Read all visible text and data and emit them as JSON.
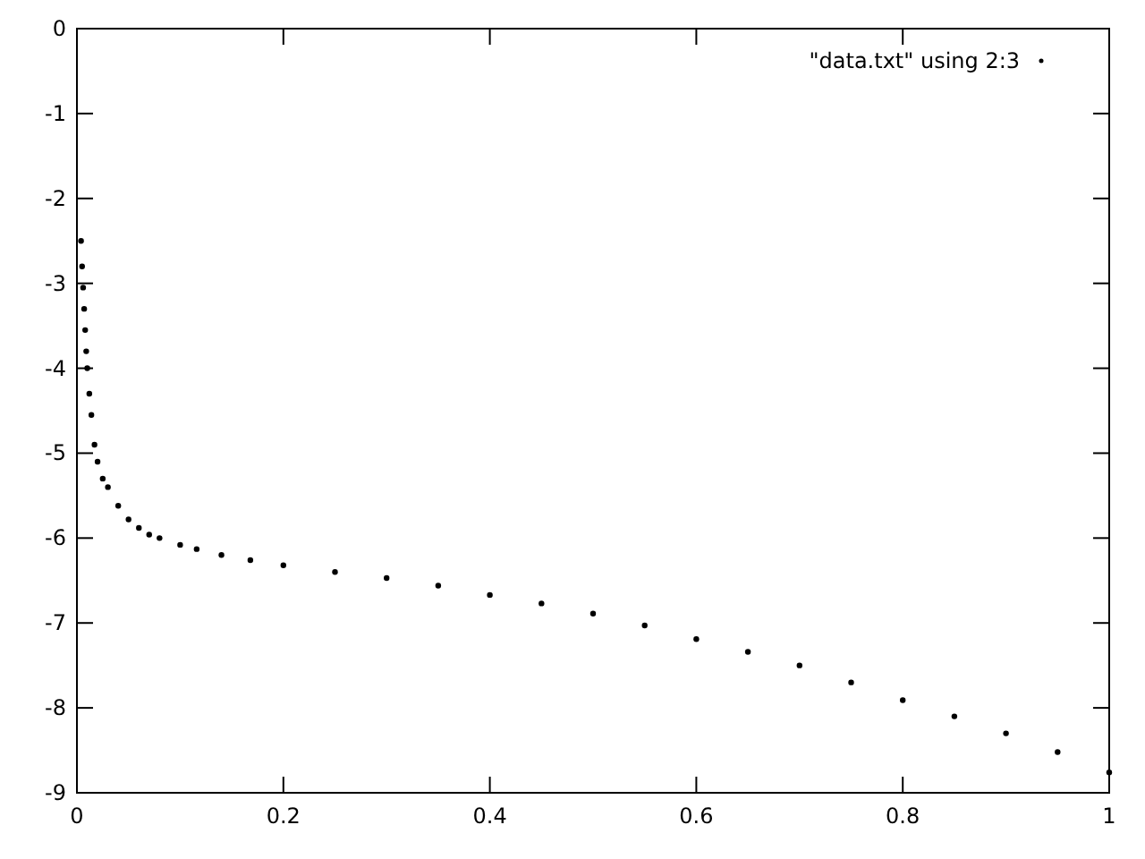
{
  "chart_data": {
    "type": "scatter",
    "xlim": [
      0,
      1
    ],
    "ylim": [
      -9,
      0
    ],
    "xticks": [
      0,
      0.2,
      0.4,
      0.6,
      0.8,
      1
    ],
    "yticks": [
      0,
      -1,
      -2,
      -3,
      -4,
      -5,
      -6,
      -7,
      -8,
      -9
    ],
    "legend": "top right",
    "marker": "circle",
    "grid": false,
    "series": [
      {
        "name": "\"data.txt\" using 2:3",
        "color": "#000000",
        "x": [
          0.004,
          0.005,
          0.006,
          0.007,
          0.008,
          0.009,
          0.01,
          0.012,
          0.014,
          0.017,
          0.02,
          0.025,
          0.03,
          0.04,
          0.05,
          0.06,
          0.07,
          0.08,
          0.1,
          0.116,
          0.14,
          0.168,
          0.2,
          0.25,
          0.3,
          0.35,
          0.4,
          0.45,
          0.5,
          0.55,
          0.6,
          0.65,
          0.7,
          0.75,
          0.8,
          0.85,
          0.9,
          0.95,
          1.0
        ],
        "values": [
          -2.5,
          -2.8,
          -3.05,
          -3.3,
          -3.55,
          -3.8,
          -4.0,
          -4.3,
          -4.55,
          -4.9,
          -5.1,
          -5.3,
          -5.4,
          -5.62,
          -5.78,
          -5.88,
          -5.96,
          -6.0,
          -6.08,
          -6.13,
          -6.2,
          -6.26,
          -6.32,
          -6.4,
          -6.47,
          -6.56,
          -6.67,
          -6.77,
          -6.89,
          -7.03,
          -7.19,
          -7.34,
          -7.5,
          -7.7,
          -7.91,
          -8.1,
          -8.3,
          -8.52,
          -8.76
        ]
      }
    ]
  }
}
